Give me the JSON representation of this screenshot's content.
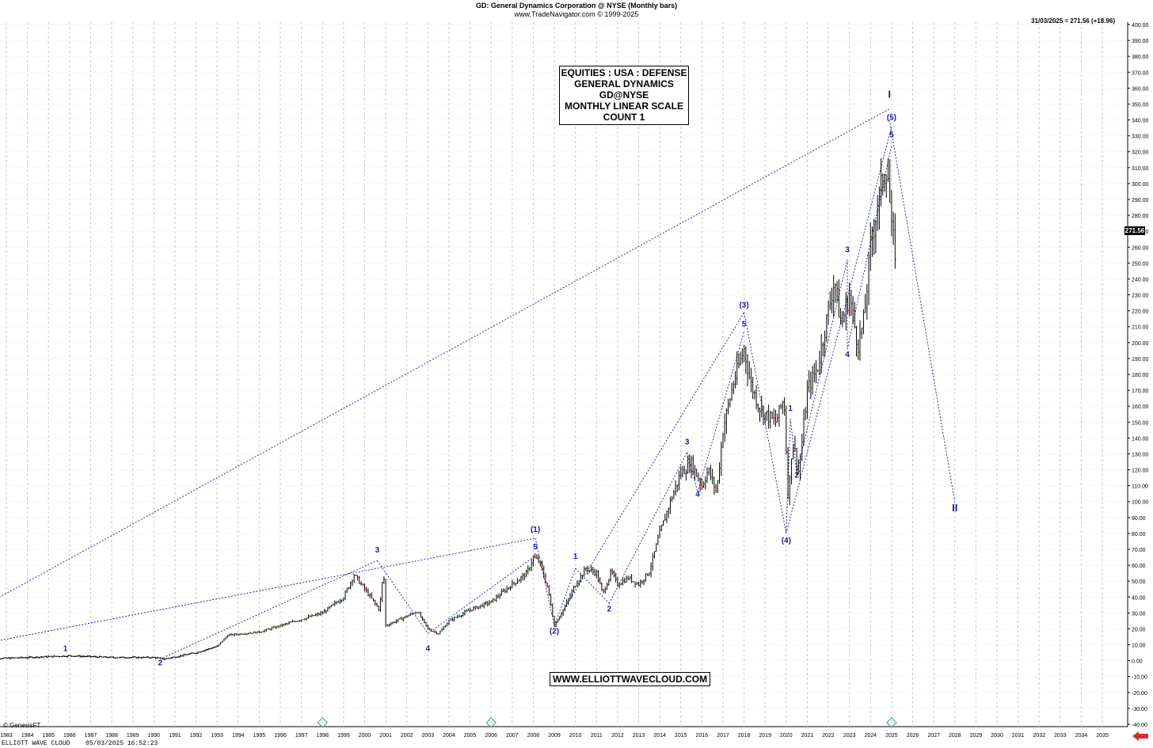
{
  "header": {
    "title": "GD:  General Dynamics Corporation @ NYSE  (Monthly bars)",
    "subtitle": "www.TradeNavigator.com © 1999-2025",
    "last_price": "31/03/2025 = 271.56 (+18.96)",
    "price_flag": "271.56"
  },
  "info_box": {
    "lines": [
      "EQUITIES : USA : DEFENSE",
      "GENERAL DYNAMICS",
      "GD@NYSE",
      "MONTHLY LINEAR SCALE",
      "COUNT 1"
    ]
  },
  "watermark": "WWW.ELLIOTTWAVECLOUD.COM",
  "footer": {
    "copyright": "© GenesisFT",
    "left": "ELLIOTT WAVE CLOUD",
    "date": "05/03/2025 16:52:23"
  },
  "colors": {
    "bars_up": "#2e7d32",
    "bars_down": "#c62828",
    "bars_main": "#000000",
    "wave_lines": "#1a1aa6",
    "labels": "#1a1aa6",
    "grid": "#c8c8c8"
  },
  "chart_data": {
    "type": "line",
    "scale": "linear",
    "x_ticks": [
      "1983",
      "1984",
      "1985",
      "1986",
      "1987",
      "1988",
      "1989",
      "1990",
      "1991",
      "1992",
      "1993",
      "1994",
      "1995",
      "1996",
      "1997",
      "1998",
      "1999",
      "2000",
      "2001",
      "2002",
      "2003",
      "2004",
      "2005",
      "2006",
      "2007",
      "2008",
      "2009",
      "2010",
      "2011",
      "2012",
      "2013",
      "2014",
      "2015",
      "2016",
      "2017",
      "2018",
      "2019",
      "2020",
      "2021",
      "2022",
      "2023",
      "2024",
      "2025",
      "2026",
      "2027",
      "2028",
      "2029",
      "2030",
      "2031",
      "2032",
      "2033",
      "2034",
      "2035"
    ],
    "ylim": [
      -40,
      400
    ],
    "y_tick_step": 10,
    "grid": true,
    "series": [
      {
        "x": [
          1982.0,
          1984.0,
          1986.0,
          1988.0,
          1990.0,
          1990.5,
          1992.0,
          1993.0,
          1993.5,
          1995.0,
          1996.0,
          1997.0,
          1998.0,
          1999.0,
          1999.5,
          2000.0,
          2000.7,
          2000.9,
          2001.0,
          2002.0,
          2002.5,
          2003.0,
          2003.5,
          2004.0,
          2005.0,
          2006.0,
          2007.0,
          2007.7,
          2008.0,
          2008.3,
          2008.7,
          2009.0,
          2009.5,
          2010.0,
          2010.5,
          2011.0,
          2011.3,
          2011.7,
          2012.0,
          2012.5,
          2013.0,
          2013.5,
          2014.0,
          2014.5,
          2015.0,
          2015.5,
          2016.0,
          2016.3,
          2016.7,
          2017.0,
          2017.5,
          2018.0,
          2018.3,
          2018.7,
          2019.0,
          2019.5,
          2019.9,
          2020.1,
          2020.3,
          2020.6,
          2021.0,
          2021.5,
          2022.0,
          2022.3,
          2022.6,
          2023.0,
          2023.4,
          2023.7,
          2024.0,
          2024.5,
          2024.8,
          2025.0,
          2025.2
        ],
        "values": [
          1,
          2,
          3,
          2,
          2,
          1,
          5,
          9,
          16,
          18,
          22,
          26,
          30,
          40,
          54,
          45,
          32,
          57,
          22,
          28,
          31,
          20,
          17,
          25,
          32,
          37,
          48,
          55,
          65,
          62,
          45,
          22,
          34,
          48,
          58,
          55,
          42,
          56,
          48,
          52,
          48,
          56,
          80,
          100,
          118,
          124,
          110,
          120,
          106,
          145,
          175,
          196,
          175,
          160,
          155,
          150,
          165,
          100,
          140,
          118,
          170,
          185,
          220,
          240,
          210,
          230,
          198,
          215,
          260,
          298,
          312,
          270,
          255
        ]
      }
    ],
    "wave_labels": [
      {
        "text": "1",
        "x": 1985.8,
        "y": 6
      },
      {
        "text": "2",
        "x": 1990.3,
        "y": -3
      },
      {
        "text": "3",
        "x": 2000.6,
        "y": 68
      },
      {
        "text": "4",
        "x": 2003.0,
        "y": 6
      },
      {
        "text": "(1)",
        "x": 2008.1,
        "y": 81
      },
      {
        "text": "5",
        "x": 2008.1,
        "y": 70
      },
      {
        "text": "(2)",
        "x": 2009.0,
        "y": 17
      },
      {
        "text": "1",
        "x": 2010.0,
        "y": 64
      },
      {
        "text": "2",
        "x": 2011.6,
        "y": 31
      },
      {
        "text": "3",
        "x": 2015.3,
        "y": 136
      },
      {
        "text": "4",
        "x": 2015.8,
        "y": 103
      },
      {
        "text": "(3)",
        "x": 2018.0,
        "y": 222
      },
      {
        "text": "5",
        "x": 2018.0,
        "y": 210
      },
      {
        "text": "(4)",
        "x": 2020.0,
        "y": 74
      },
      {
        "text": "1",
        "x": 2020.2,
        "y": 157
      },
      {
        "text": "2",
        "x": 2020.5,
        "y": 115
      },
      {
        "text": "3",
        "x": 2022.9,
        "y": 257
      },
      {
        "text": "4",
        "x": 2022.9,
        "y": 191
      },
      {
        "text": "5",
        "x": 2025.0,
        "y": 329
      },
      {
        "text": "(5)",
        "x": 2025.0,
        "y": 340
      },
      {
        "text": "I",
        "x": 2024.9,
        "y": 354
      },
      {
        "text": "II",
        "x": 2028.0,
        "y": 94
      }
    ],
    "wave_lines": [
      {
        "points": [
          [
            1990.3,
            1
          ],
          [
            2000.6,
            63
          ]
        ]
      },
      {
        "points": [
          [
            2000.6,
            63
          ],
          [
            2003.0,
            17
          ]
        ]
      },
      {
        "points": [
          [
            2003.0,
            17
          ],
          [
            2008.1,
            66
          ]
        ]
      },
      {
        "points": [
          [
            1982.0,
            11
          ],
          [
            2008.1,
            77
          ]
        ]
      },
      {
        "points": [
          [
            2008.1,
            77
          ],
          [
            2009.0,
            22
          ]
        ]
      },
      {
        "points": [
          [
            2009.0,
            22
          ],
          [
            2010.0,
            58
          ]
        ]
      },
      {
        "points": [
          [
            2010.0,
            58
          ],
          [
            2011.6,
            36
          ]
        ]
      },
      {
        "points": [
          [
            2011.6,
            36
          ],
          [
            2015.3,
            131
          ]
        ]
      },
      {
        "points": [
          [
            2015.3,
            131
          ],
          [
            2015.8,
            106
          ]
        ]
      },
      {
        "points": [
          [
            2015.8,
            106
          ],
          [
            2018.0,
            207
          ]
        ]
      },
      {
        "points": [
          [
            2009.0,
            22
          ],
          [
            2018.0,
            219
          ]
        ]
      },
      {
        "points": [
          [
            2018.0,
            219
          ],
          [
            2020.0,
            80
          ]
        ]
      },
      {
        "points": [
          [
            2020.0,
            80
          ],
          [
            2020.2,
            152
          ]
        ]
      },
      {
        "points": [
          [
            2020.2,
            152
          ],
          [
            2020.5,
            118
          ]
        ]
      },
      {
        "points": [
          [
            2020.5,
            118
          ],
          [
            2022.9,
            252
          ]
        ]
      },
      {
        "points": [
          [
            2022.9,
            252
          ],
          [
            2022.9,
            196
          ]
        ]
      },
      {
        "points": [
          [
            2022.9,
            196
          ],
          [
            2025.0,
            324
          ]
        ]
      },
      {
        "points": [
          [
            2020.0,
            80
          ],
          [
            2025.0,
            336
          ]
        ]
      },
      {
        "points": [
          [
            1982.0,
            35
          ],
          [
            2024.9,
            347
          ]
        ]
      },
      {
        "points": [
          [
            2024.9,
            340
          ],
          [
            2028.0,
            100
          ]
        ]
      }
    ],
    "cycle_markers": [
      1998.0,
      2006.0,
      2025.0
    ]
  }
}
